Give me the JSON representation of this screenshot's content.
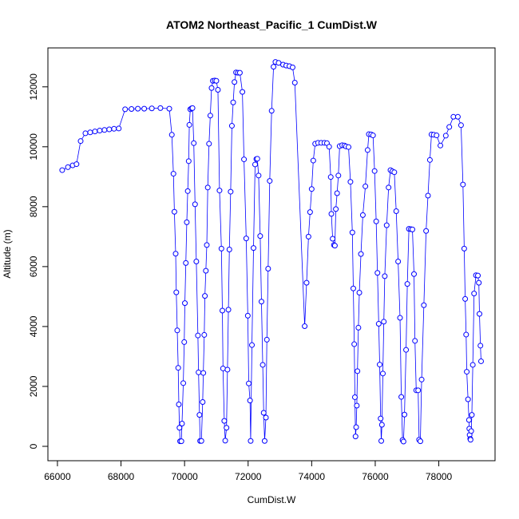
{
  "chart_data": {
    "type": "line",
    "title": "ATOM2 Northeast_Pacific_1 CumDist.W",
    "x_label": "CumDist.W",
    "y_label": "Altitude (m)",
    "xlim": [
      65700,
      79770
    ],
    "ylim": [
      -480,
      13300
    ],
    "xticks": [
      66000,
      68000,
      70000,
      72000,
      74000,
      76000,
      78000
    ],
    "yticks": [
      0,
      2000,
      4000,
      6000,
      8000,
      10000,
      12000
    ],
    "x": [
      66150,
      66330,
      66480,
      66600,
      66730,
      66880,
      67030,
      67180,
      67330,
      67480,
      67630,
      67780,
      67930,
      68130,
      68330,
      68530,
      68730,
      68970,
      69240,
      69520,
      69600,
      69650,
      69680,
      69720,
      69740,
      69770,
      69800,
      69820,
      69840,
      69860,
      69900,
      69920,
      69960,
      69990,
      70010,
      70040,
      70070,
      70100,
      70130,
      70150,
      70180,
      70220,
      70250,
      70290,
      70330,
      70370,
      70420,
      70440,
      70470,
      70490,
      70530,
      70570,
      70590,
      70620,
      70640,
      70670,
      70700,
      70730,
      70770,
      70810,
      70850,
      70890,
      70950,
      71000,
      71050,
      71100,
      71160,
      71190,
      71210,
      71250,
      71280,
      71320,
      71350,
      71380,
      71410,
      71450,
      71490,
      71530,
      71570,
      71620,
      71680,
      71740,
      71820,
      71870,
      71940,
      71990,
      72020,
      72060,
      72080,
      72120,
      72170,
      72220,
      72260,
      72290,
      72330,
      72380,
      72420,
      72460,
      72490,
      72520,
      72560,
      72590,
      72630,
      72680,
      72740,
      72800,
      72860,
      72960,
      73100,
      73200,
      73300,
      73400,
      73470,
      73780,
      73840,
      73900,
      73950,
      74000,
      74050,
      74110,
      74200,
      74300,
      74400,
      74480,
      74550,
      74600,
      74620,
      74660,
      74700,
      74730,
      74760,
      74800,
      74840,
      74880,
      74960,
      75030,
      75080,
      75160,
      75220,
      75280,
      75310,
      75340,
      75360,
      75380,
      75400,
      75420,
      75440,
      75470,
      75500,
      75550,
      75610,
      75690,
      75760,
      75800,
      75870,
      75930,
      75980,
      76030,
      76070,
      76110,
      76140,
      76170,
      76190,
      76210,
      76240,
      76270,
      76300,
      76360,
      76420,
      76480,
      76540,
      76600,
      76660,
      76720,
      76780,
      76820,
      76860,
      76890,
      76920,
      76970,
      77010,
      77060,
      77120,
      77170,
      77220,
      77250,
      77290,
      77350,
      77380,
      77420,
      77460,
      77530,
      77600,
      77660,
      77720,
      77770,
      77840,
      77930,
      78050,
      78220,
      78330,
      78460,
      78600,
      78700,
      78760,
      78800,
      78830,
      78860,
      78880,
      78920,
      78950,
      78960,
      78970,
      78990,
      79000,
      79020,
      79040,
      79070,
      79110,
      79170,
      79230,
      79260,
      79280,
      79310,
      79330
    ],
    "series": [
      {
        "name": "Altitude",
        "color": "#0000ff",
        "values": [
          9220,
          9320,
          9380,
          9420,
          10190,
          10450,
          10480,
          10510,
          10540,
          10560,
          10580,
          10600,
          10610,
          11250,
          11260,
          11270,
          11270,
          11280,
          11290,
          11270,
          10400,
          9100,
          7830,
          6430,
          5140,
          3870,
          2620,
          1400,
          620,
          170,
          170,
          760,
          2110,
          3480,
          4780,
          6120,
          7480,
          8520,
          9520,
          10730,
          11250,
          11280,
          11290,
          10120,
          8080,
          6170,
          3700,
          2470,
          1050,
          180,
          180,
          1480,
          2450,
          3720,
          5020,
          5860,
          6720,
          8640,
          10100,
          11040,
          11960,
          12200,
          12210,
          12200,
          11900,
          8540,
          6600,
          4530,
          2600,
          850,
          190,
          620,
          2560,
          4560,
          6570,
          8500,
          10700,
          11480,
          12160,
          12480,
          12470,
          12470,
          11830,
          9580,
          6940,
          4360,
          2100,
          1530,
          180,
          3380,
          6620,
          9410,
          9590,
          9600,
          9040,
          7020,
          4830,
          2720,
          1120,
          180,
          960,
          3560,
          5930,
          8860,
          11200,
          12670,
          12830,
          12800,
          12740,
          12710,
          12690,
          12650,
          12140,
          4010,
          5460,
          7000,
          7820,
          8590,
          9540,
          10100,
          10130,
          10130,
          10130,
          10120,
          10000,
          8990,
          7760,
          6930,
          6720,
          6700,
          7920,
          8450,
          9040,
          10020,
          10050,
          10040,
          10010,
          9990,
          8830,
          7140,
          5270,
          3410,
          1640,
          330,
          640,
          1360,
          2510,
          3960,
          5130,
          6420,
          7720,
          8680,
          9890,
          10420,
          10410,
          10380,
          9190,
          7510,
          5790,
          4090,
          2730,
          930,
          180,
          720,
          2430,
          4160,
          5680,
          7380,
          8640,
          9220,
          9180,
          9150,
          7850,
          6170,
          4290,
          1650,
          210,
          160,
          1060,
          3220,
          5420,
          7260,
          7250,
          7240,
          5750,
          3520,
          1870,
          1870,
          220,
          170,
          2230,
          4710,
          7190,
          8370,
          9560,
          10410,
          10400,
          10380,
          10040,
          10370,
          10660,
          11000,
          11000,
          10720,
          8740,
          6600,
          4920,
          3730,
          2490,
          1570,
          880,
          590,
          380,
          250,
          220,
          510,
          1050,
          2720,
          5100,
          5710,
          5700,
          5460,
          4420,
          3360,
          2840
        ]
      }
    ]
  }
}
